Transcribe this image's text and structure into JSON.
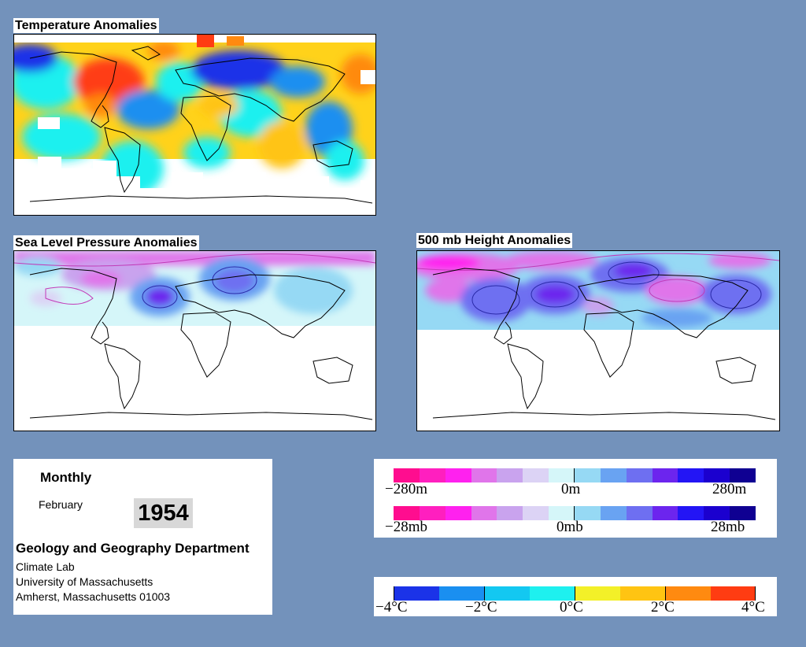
{
  "maps": {
    "temperature": {
      "title": "Temperature Anomalies"
    },
    "slp": {
      "title": "Sea Level Pressure Anomalies"
    },
    "height500": {
      "title": "500 mb Height Anomalies"
    }
  },
  "info": {
    "period": "Monthly",
    "month": "February",
    "year": "1954",
    "department": "Geology and Geography Department",
    "lab": "Climate Lab",
    "university": "University of Massachusetts",
    "address": "Amherst, Massachusetts 01003"
  },
  "legends": {
    "height": {
      "labels": [
        "−280m",
        "0m",
        "280m"
      ],
      "colors": [
        "#ff0d8f",
        "#ff1fbf",
        "#ff21ef",
        "#e075ea",
        "#c9a3ee",
        "#dcd3f5",
        "#d5f6f9",
        "#96d9f4",
        "#69a3f2",
        "#6e6ff1",
        "#6c25ee",
        "#2315f5",
        "#1b00cf",
        "#0f0092"
      ]
    },
    "pressure": {
      "labels": [
        "−28mb",
        "0mb",
        "28mb"
      ],
      "colors": [
        "#ff0d8f",
        "#ff1fbf",
        "#ff21ef",
        "#e075ea",
        "#c9a3ee",
        "#dcd3f5",
        "#d5f6f9",
        "#96d9f4",
        "#69a3f2",
        "#6e6ff1",
        "#6c25ee",
        "#2315f5",
        "#1b00cf",
        "#0f0092"
      ]
    },
    "temperature": {
      "labels": [
        "−4°C",
        "−2°C",
        "0°C",
        "2°C",
        "4°C"
      ],
      "colors": [
        "#1b33e8",
        "#1a8ff0",
        "#13c8f1",
        "#1ef0ef",
        "#f3f028",
        "#ffc412",
        "#ff8a10",
        "#ff3c12"
      ]
    }
  }
}
